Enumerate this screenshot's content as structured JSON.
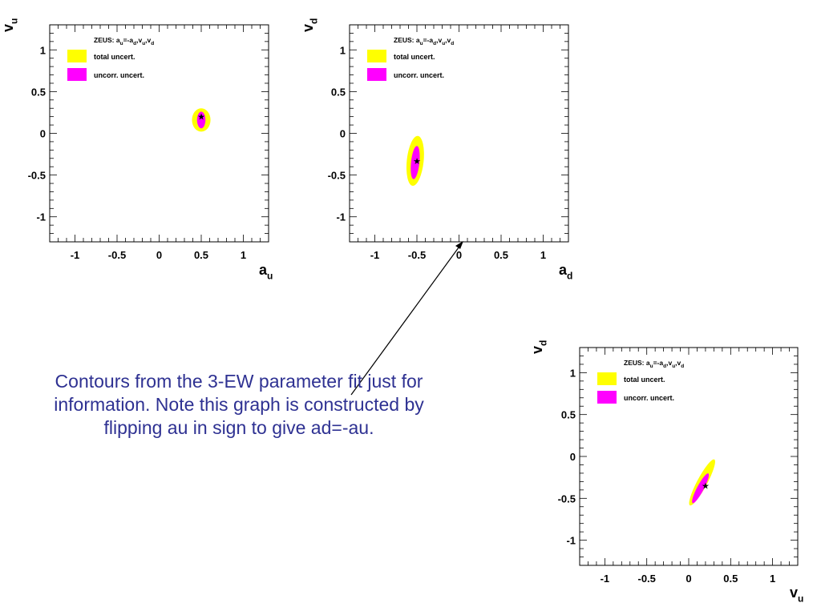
{
  "annotation": {
    "text": "Contours from the 3-EW parameter fit just for information. Note this graph is constructed by flipping au in sign to give ad=-au."
  },
  "colors": {
    "total": "#ffff00",
    "uncorr": "#ff00ff",
    "axes": "#000000",
    "annotation_text": "#2e3192"
  },
  "chart_data": [
    {
      "type": "scatter",
      "title": "ZEUS: a_u=-a_d,v_u,v_d",
      "xlabel": "a_u",
      "ylabel": "v_u",
      "xlim": [
        -1.3,
        1.3
      ],
      "ylim": [
        -1.3,
        1.3
      ],
      "xticks": [
        -1,
        -0.5,
        0,
        0.5,
        1
      ],
      "yticks": [
        -1,
        -0.5,
        0,
        0.5,
        1
      ],
      "grid": false,
      "legend_position": "top-left",
      "legend": [
        "total uncert.",
        "uncorr. uncert."
      ],
      "series": [
        {
          "name": "total uncert.",
          "kind": "contour",
          "center": [
            0.5,
            0.16
          ],
          "semi_axis_x": 0.11,
          "semi_axis_y": 0.14,
          "tilt_deg": 0
        },
        {
          "name": "uncorr. uncert.",
          "kind": "contour",
          "center": [
            0.5,
            0.16
          ],
          "semi_axis_x": 0.05,
          "semi_axis_y": 0.1,
          "tilt_deg": 0
        }
      ],
      "best_fit": {
        "x": 0.5,
        "y": 0.2
      }
    },
    {
      "type": "scatter",
      "title": "ZEUS: a_u=-a_d,v_u,v_d",
      "xlabel": "a_d",
      "ylabel": "v_d",
      "xlim": [
        -1.3,
        1.3
      ],
      "ylim": [
        -1.3,
        1.3
      ],
      "xticks": [
        -1,
        -0.5,
        0,
        0.5,
        1
      ],
      "yticks": [
        -1,
        -0.5,
        0,
        0.5,
        1
      ],
      "grid": false,
      "legend_position": "top-left",
      "legend": [
        "total uncert.",
        "uncorr. uncert."
      ],
      "series": [
        {
          "name": "total uncert.",
          "kind": "contour",
          "center": [
            -0.52,
            -0.33
          ],
          "semi_axis_x": 0.1,
          "semi_axis_y": 0.3,
          "tilt_deg": 6
        },
        {
          "name": "uncorr. uncert.",
          "kind": "contour",
          "center": [
            -0.52,
            -0.35
          ],
          "semi_axis_x": 0.05,
          "semi_axis_y": 0.2,
          "tilt_deg": 6
        }
      ],
      "best_fit": {
        "x": -0.5,
        "y": -0.33
      }
    },
    {
      "type": "scatter",
      "title": "ZEUS: a_u=-a_d,v_u,v_d",
      "xlabel": "v_u",
      "ylabel": "v_d",
      "xlim": [
        -1.3,
        1.3
      ],
      "ylim": [
        -1.3,
        1.3
      ],
      "xticks": [
        -1,
        -0.5,
        0,
        0.5,
        1
      ],
      "yticks": [
        -1,
        -0.5,
        0,
        0.5,
        1
      ],
      "grid": false,
      "legend_position": "top-left",
      "legend": [
        "total uncert.",
        "uncorr. uncert."
      ],
      "series": [
        {
          "name": "total uncert.",
          "kind": "contour",
          "center": [
            0.16,
            -0.31
          ],
          "semi_axis_x": 0.06,
          "semi_axis_y": 0.31,
          "tilt_deg": 28
        },
        {
          "name": "uncorr. uncert.",
          "kind": "contour",
          "center": [
            0.14,
            -0.38
          ],
          "semi_axis_x": 0.04,
          "semi_axis_y": 0.2,
          "tilt_deg": 28
        }
      ],
      "best_fit": {
        "x": 0.2,
        "y": -0.35
      }
    }
  ]
}
